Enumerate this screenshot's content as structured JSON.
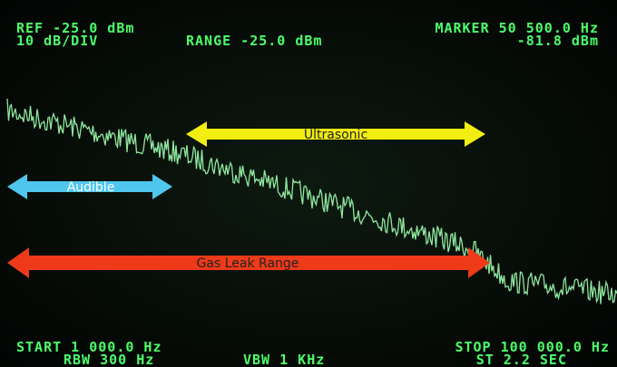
{
  "header": {
    "ref": "REF -25.0 dBm",
    "scale": "10 dB/DIV",
    "range": "RANGE -25.0 dBm",
    "marker": "MARKER 50 500.0 Hz",
    "marker_level": "-81.8 dBm"
  },
  "footer": {
    "start": "START 1 000.0 Hz",
    "rbw": "RBW 300 Hz",
    "vbw": "VBW 1 KHz",
    "stop": "STOP 100 000.0 Hz",
    "sweep_time": "ST 2.2 SEC"
  },
  "annotations": {
    "ultrasonic": "Ultrasonic",
    "audible": "Audible",
    "gas_leak": "Gas Leak Range"
  }
}
